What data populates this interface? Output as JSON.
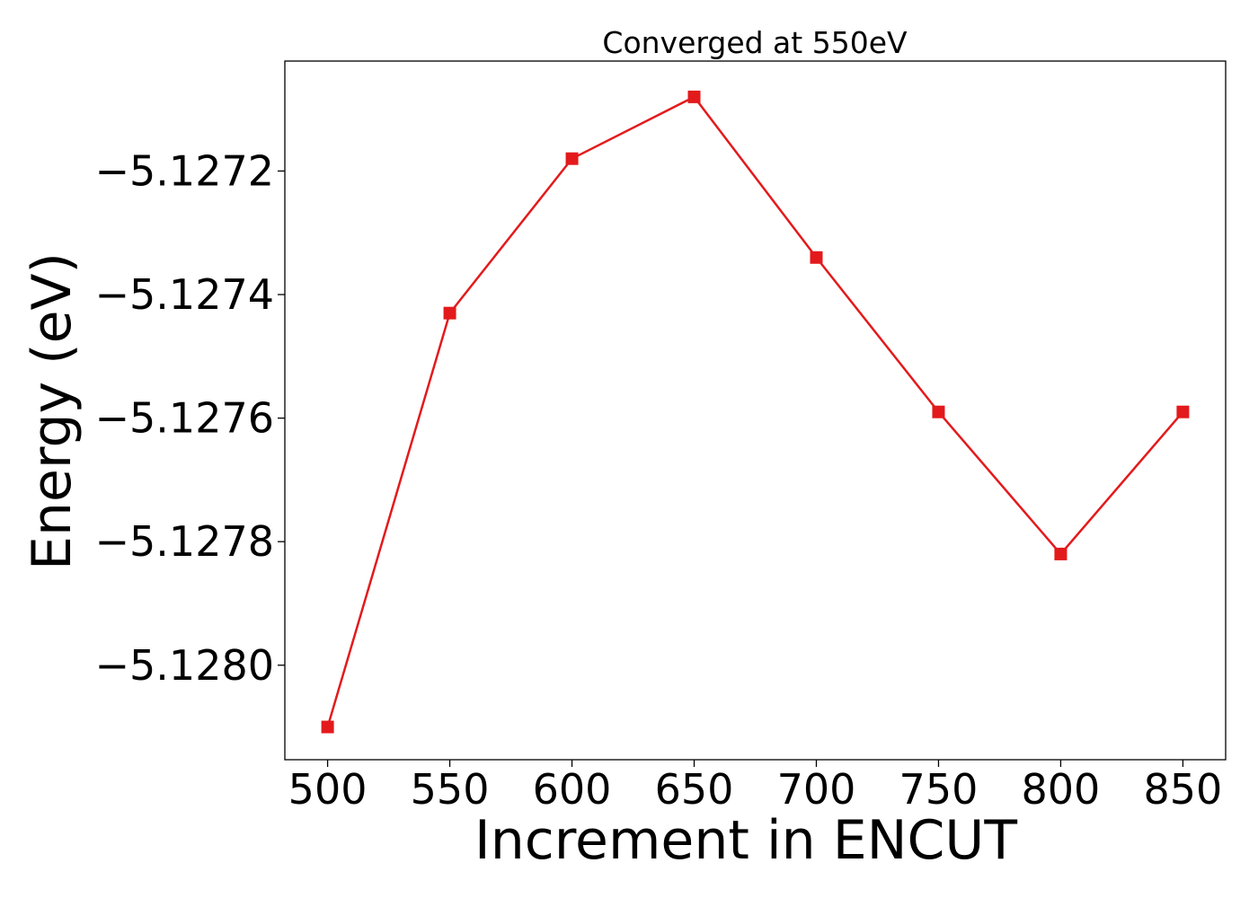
{
  "chart_data": {
    "type": "line",
    "title": "Converged at 550eV",
    "xlabel": "Increment in ENCUT",
    "ylabel": "Energy (eV)",
    "x": [
      500,
      550,
      600,
      650,
      700,
      750,
      800,
      850
    ],
    "series": [
      {
        "values": [
          -5.1281,
          -5.12743,
          -5.12718,
          -5.12708,
          -5.12734,
          -5.12759,
          -5.12782,
          -5.12759
        ],
        "color": "#e31a1c",
        "marker": "square"
      }
    ],
    "xticks": [
      500,
      550,
      600,
      650,
      700,
      750,
      800,
      850
    ],
    "xtick_labels": [
      "500",
      "550",
      "600",
      "650",
      "700",
      "750",
      "800",
      "850"
    ],
    "yticks": [
      -5.1272,
      -5.1274,
      -5.1276,
      -5.1278,
      -5.128
    ],
    "ytick_labels": [
      "−5.1272",
      "−5.1274",
      "−5.1276",
      "−5.1278",
      "−5.1280"
    ],
    "xlim": [
      482.5,
      867.5
    ],
    "ylim": [
      -5.128153,
      -5.127022
    ],
    "grid": false,
    "legend": "none"
  }
}
